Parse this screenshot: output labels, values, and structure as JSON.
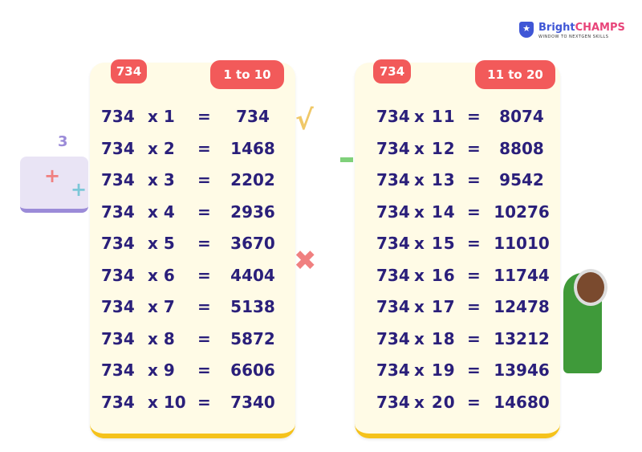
{
  "logo": {
    "brand_a": "Bright",
    "brand_b": "CHAMPS",
    "tagline": "WINDOW TO NEXTGEN SKILLS"
  },
  "tables": [
    {
      "number": "734",
      "range": "1 to 10",
      "rows": [
        {
          "base": "734",
          "mult": "x 1",
          "eq": "=",
          "result": "734"
        },
        {
          "base": "734",
          "mult": "x 2",
          "eq": "=",
          "result": "1468"
        },
        {
          "base": "734",
          "mult": "x 3",
          "eq": "=",
          "result": "2202"
        },
        {
          "base": "734",
          "mult": "x 4",
          "eq": "=",
          "result": "2936"
        },
        {
          "base": "734",
          "mult": "x 5",
          "eq": "=",
          "result": "3670"
        },
        {
          "base": "734",
          "mult": "x 6",
          "eq": "=",
          "result": "4404"
        },
        {
          "base": "734",
          "mult": "x 7",
          "eq": "=",
          "result": "5138"
        },
        {
          "base": "734",
          "mult": "x 8",
          "eq": "=",
          "result": "5872"
        },
        {
          "base": "734",
          "mult": "x 9",
          "eq": "=",
          "result": "6606"
        },
        {
          "base": "734",
          "mult": "x 10",
          "eq": "=",
          "result": "7340"
        }
      ]
    },
    {
      "number": "734",
      "range": "11 to 20",
      "rows": [
        {
          "base": "734",
          "mult": "x 11",
          "eq": "=",
          "result": "8074"
        },
        {
          "base": "734",
          "mult": "x 12",
          "eq": "=",
          "result": "8808"
        },
        {
          "base": "734",
          "mult": "x 13",
          "eq": "=",
          "result": "9542"
        },
        {
          "base": "734",
          "mult": "x 14",
          "eq": "=",
          "result": "10276"
        },
        {
          "base": "734",
          "mult": "x 15",
          "eq": "=",
          "result": "11010"
        },
        {
          "base": "734",
          "mult": "x 16",
          "eq": "=",
          "result": "11744"
        },
        {
          "base": "734",
          "mult": "x 17",
          "eq": "=",
          "result": "12478"
        },
        {
          "base": "734",
          "mult": "x 18",
          "eq": "=",
          "result": "13212"
        },
        {
          "base": "734",
          "mult": "x 19",
          "eq": "=",
          "result": "13946"
        },
        {
          "base": "734",
          "mult": "x 20",
          "eq": "=",
          "result": "14680"
        }
      ]
    }
  ],
  "colors": {
    "tag": "#f25a5a",
    "card": "#fffbe6",
    "text": "#2a1f7a",
    "accent": "#f5c21b"
  }
}
